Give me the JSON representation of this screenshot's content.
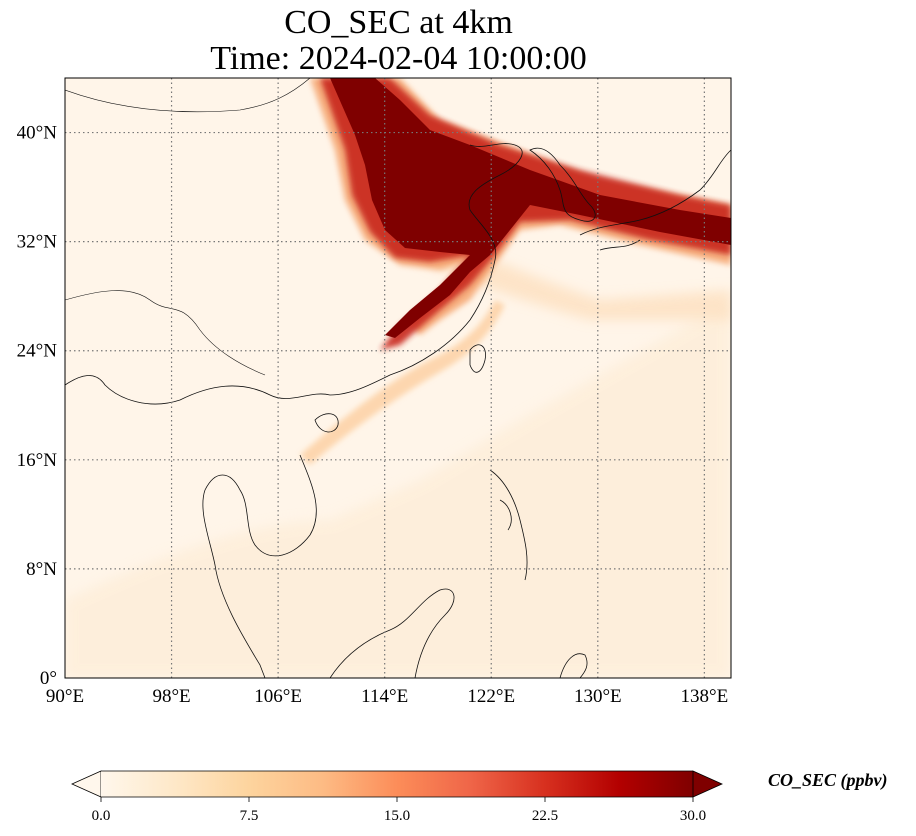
{
  "title": {
    "line1": "CO_SEC at 4km",
    "line2": "Time: 2024-02-04 10:00:00"
  },
  "map": {
    "lon_range": [
      90,
      140
    ],
    "lat_range": [
      0,
      44
    ],
    "background_color": "#fff5e9",
    "gridlines": "dotted",
    "lon_ticks": [
      {
        "value": 90,
        "label": "90°E"
      },
      {
        "value": 98,
        "label": "98°E"
      },
      {
        "value": 106,
        "label": "106°E"
      },
      {
        "value": 114,
        "label": "114°E"
      },
      {
        "value": 122,
        "label": "122°E"
      },
      {
        "value": 130,
        "label": "130°E"
      },
      {
        "value": 138,
        "label": "138°E"
      }
    ],
    "lat_ticks": [
      {
        "value": 0,
        "label": "0°"
      },
      {
        "value": 8,
        "label": "8°N"
      },
      {
        "value": 16,
        "label": "16°N"
      },
      {
        "value": 24,
        "label": "24°N"
      },
      {
        "value": 32,
        "label": "32°N"
      },
      {
        "value": 40,
        "label": "40°N"
      }
    ]
  },
  "colorbar": {
    "title": "CO_SEC (ppbv)",
    "min": 0.0,
    "max": 30.0,
    "colormap": "OrRd",
    "extend": "both",
    "colors": [
      "#fff7ec",
      "#fee8c8",
      "#fdd49e",
      "#fdbb84",
      "#fc8d59",
      "#ef6548",
      "#d7301f",
      "#b30000",
      "#7f0000"
    ],
    "ticks": [
      {
        "value": 0.0,
        "label": "0.0"
      },
      {
        "value": 7.5,
        "label": "7.5"
      },
      {
        "value": 15.0,
        "label": "15.0"
      },
      {
        "value": 22.5,
        "label": "22.5"
      },
      {
        "value": 30.0,
        "label": "30.0"
      }
    ]
  }
}
